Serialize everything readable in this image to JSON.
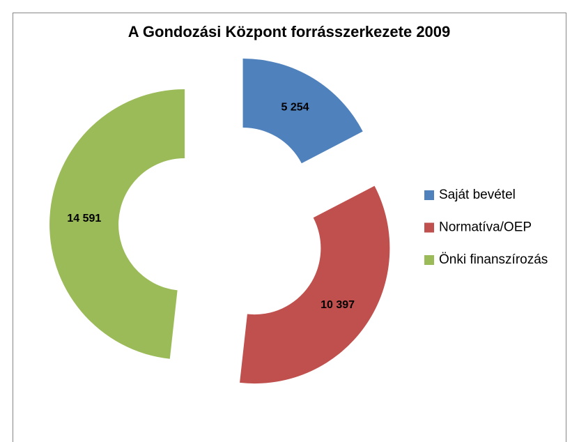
{
  "chart_data": {
    "type": "donut",
    "title": "A Gondozási Központ forrásszerkezete 2009",
    "categories": [
      "Saját bevétel",
      "Normatíva/OEP",
      "Önki finanszírozás"
    ],
    "values": [
      5254,
      10397,
      14591
    ],
    "value_labels": [
      "5 254",
      "10 397",
      "14 591"
    ],
    "colors": [
      "#4f81bd",
      "#c0504d",
      "#9bbb59"
    ],
    "legend": "right",
    "exploded": true
  }
}
